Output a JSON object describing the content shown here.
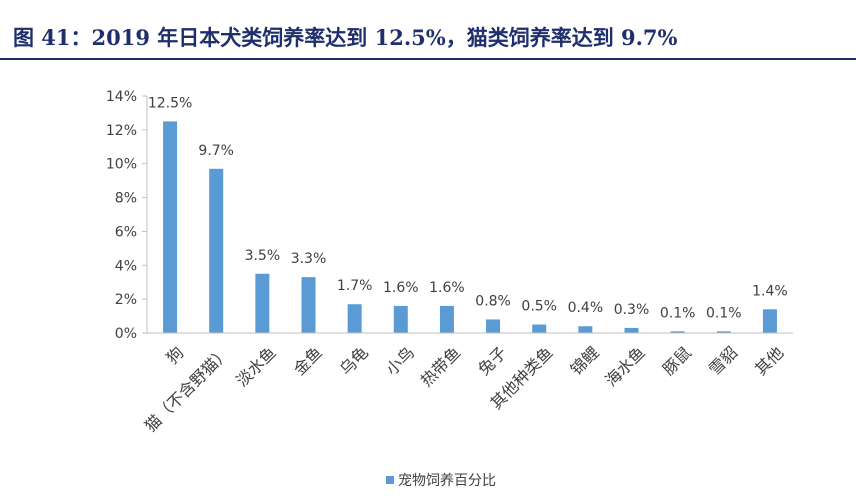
{
  "figure": {
    "title": "图 41：2019 年日本犬类饲养率达到 12.5%，猫类饲养率达到 9.7%"
  },
  "colors": {
    "title": "#1f2f6b",
    "bar": "#5b9bd5",
    "axis": "#bfbfbf",
    "text": "#404040"
  },
  "chart_data": {
    "type": "bar",
    "title": "",
    "xlabel": "",
    "ylabel": "",
    "categories": [
      "狗",
      "猫（不含野猫）",
      "淡水鱼",
      "金鱼",
      "乌龟",
      "小鸟",
      "热带鱼",
      "兔子",
      "其他种类鱼",
      "锦鲤",
      "海水鱼",
      "豚鼠",
      "雪貂",
      "其他"
    ],
    "series": [
      {
        "name": "宠物饲养百分比",
        "values": [
          12.5,
          9.7,
          3.5,
          3.3,
          1.7,
          1.6,
          1.6,
          0.8,
          0.5,
          0.4,
          0.3,
          0.1,
          0.1,
          1.4
        ],
        "labels": [
          "12.5%",
          "9.7%",
          "3.5%",
          "3.3%",
          "1.7%",
          "1.6%",
          "1.6%",
          "0.8%",
          "0.5%",
          "0.4%",
          "0.3%",
          "0.1%",
          "0.1%",
          "1.4%"
        ]
      }
    ],
    "ylim": [
      0,
      14
    ],
    "yticks": [
      "0%",
      "2%",
      "4%",
      "6%",
      "8%",
      "10%",
      "12%",
      "14%"
    ],
    "grid": false,
    "legend_position": "bottom"
  }
}
